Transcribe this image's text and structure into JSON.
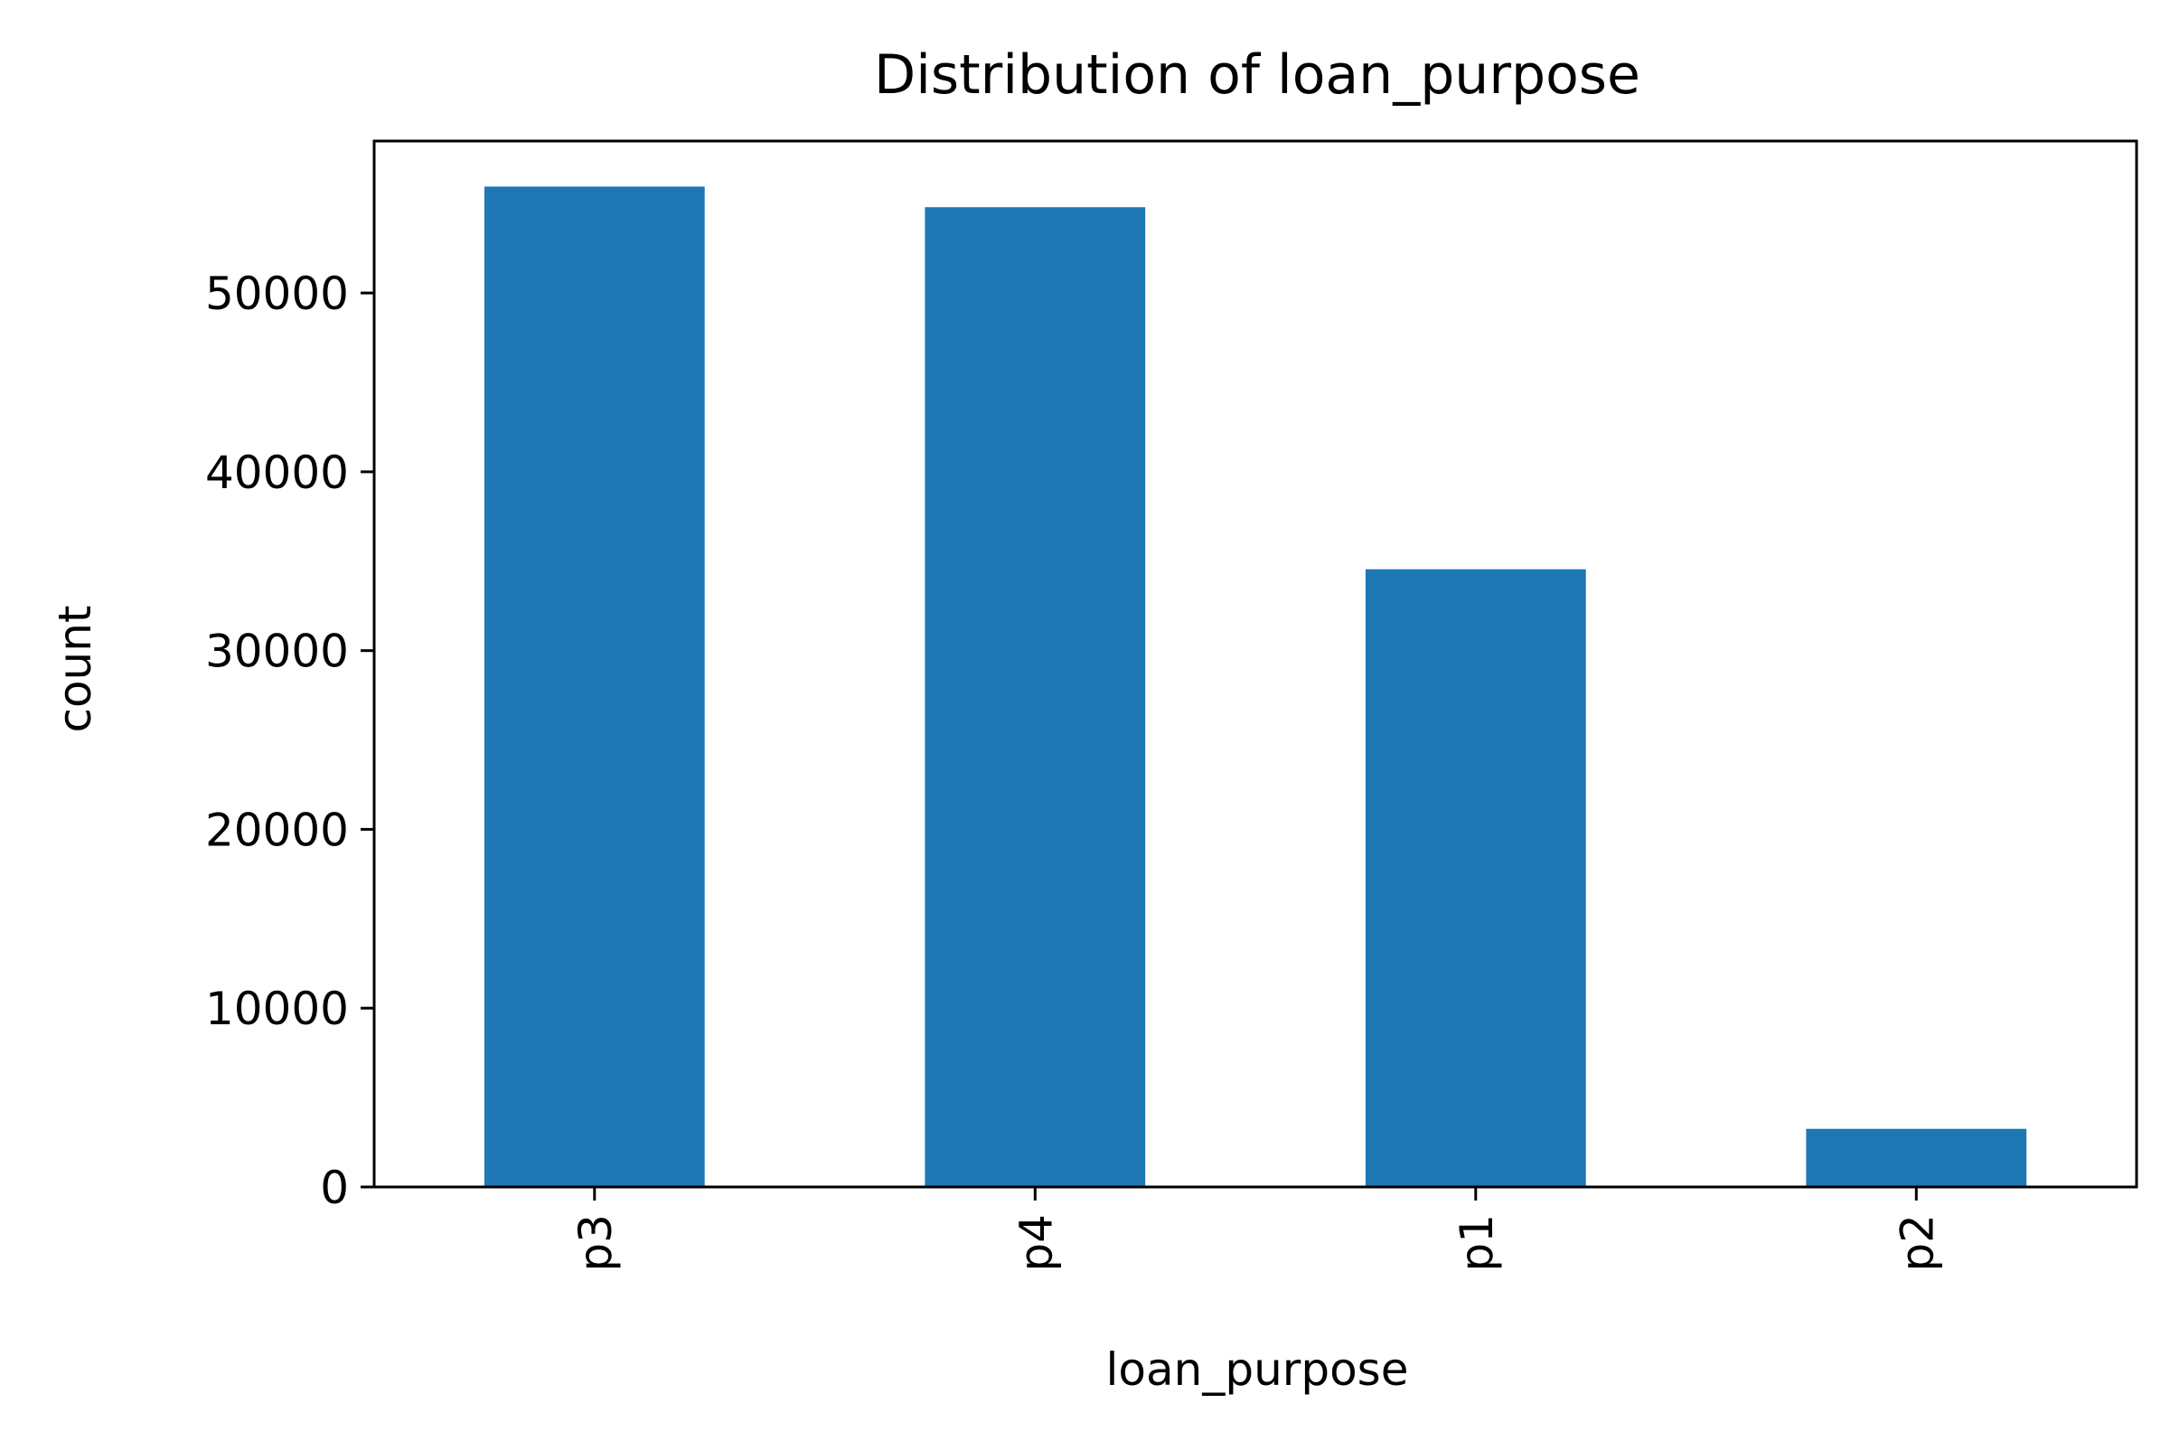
{
  "chart_data": {
    "type": "bar",
    "title": "Distribution of loan_purpose",
    "xlabel": "loan_purpose",
    "ylabel": "count",
    "categories": [
      "p3",
      "p4",
      "p1",
      "p2"
    ],
    "values": [
      55950,
      54800,
      34550,
      3250
    ],
    "ylim": [
      0,
      58500
    ],
    "yticks": [
      0,
      10000,
      20000,
      30000,
      40000,
      50000
    ],
    "ytick_labels": [
      "0",
      "10000",
      "20000",
      "30000",
      "40000",
      "50000"
    ],
    "grid": false,
    "legend": "none",
    "bar_color": "#1f77b4",
    "xtick_rotation": "vertical"
  }
}
